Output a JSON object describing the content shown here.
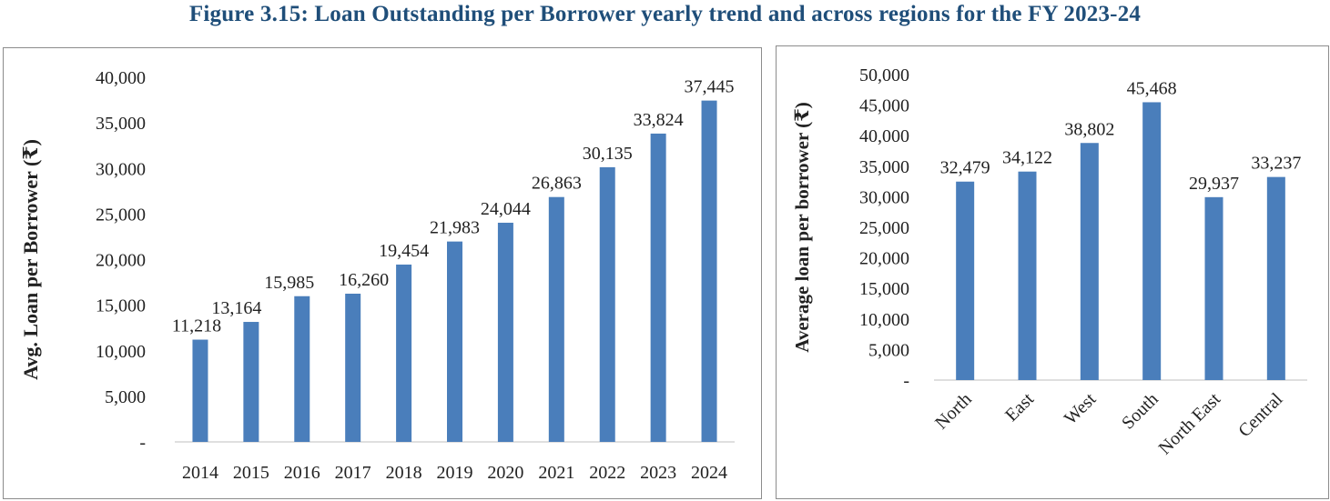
{
  "figure": {
    "title": "Figure 3.15: Loan Outstanding per Borrower yearly trend and across regions for the FY 2023-24"
  },
  "colors": {
    "bar": "#4a7ebb",
    "title": "#1f4e79",
    "axis": "#bfbfbf",
    "text": "#222222"
  },
  "chart_data": [
    {
      "type": "bar",
      "title": "",
      "xlabel": "",
      "ylabel": "Avg. Loan per Borrower (₹)",
      "categories": [
        "2014",
        "2015",
        "2016",
        "2017",
        "2018",
        "2019",
        "2020",
        "2021",
        "2022",
        "2023",
        "2024"
      ],
      "values": [
        11218,
        13164,
        15985,
        16260,
        19454,
        21983,
        24044,
        26863,
        30135,
        33824,
        37445
      ],
      "data_labels": [
        "11,218",
        "13,164",
        "15,985",
        "16,260",
        "19,454",
        "21,983",
        "24,044",
        "26,863",
        "30,135",
        "33,824",
        "37,445"
      ],
      "ylim": [
        0,
        40000
      ],
      "yticks": [
        0,
        5000,
        10000,
        15000,
        20000,
        25000,
        30000,
        35000,
        40000
      ],
      "ytick_labels": [
        "-",
        "5,000",
        "10,000",
        "15,000",
        "20,000",
        "25,000",
        "30,000",
        "35,000",
        "40,000"
      ],
      "grid": false,
      "legend": "none"
    },
    {
      "type": "bar",
      "title": "",
      "xlabel": "",
      "ylabel": "Average loan per borrower (₹)",
      "categories": [
        "North",
        "East",
        "West",
        "South",
        "North East",
        "Central"
      ],
      "values": [
        32479,
        34122,
        38802,
        45468,
        29937,
        33237
      ],
      "data_labels": [
        "32,479",
        "34,122",
        "38,802",
        "45,468",
        "29,937",
        "33,237"
      ],
      "ylim": [
        0,
        50000
      ],
      "yticks": [
        0,
        5000,
        10000,
        15000,
        20000,
        25000,
        30000,
        35000,
        40000,
        45000,
        50000
      ],
      "ytick_labels": [
        "-",
        "5,000",
        "10,000",
        "15,000",
        "20,000",
        "25,000",
        "30,000",
        "35,000",
        "40,000",
        "45,000",
        "50,000"
      ],
      "grid": false,
      "legend": "none"
    }
  ]
}
